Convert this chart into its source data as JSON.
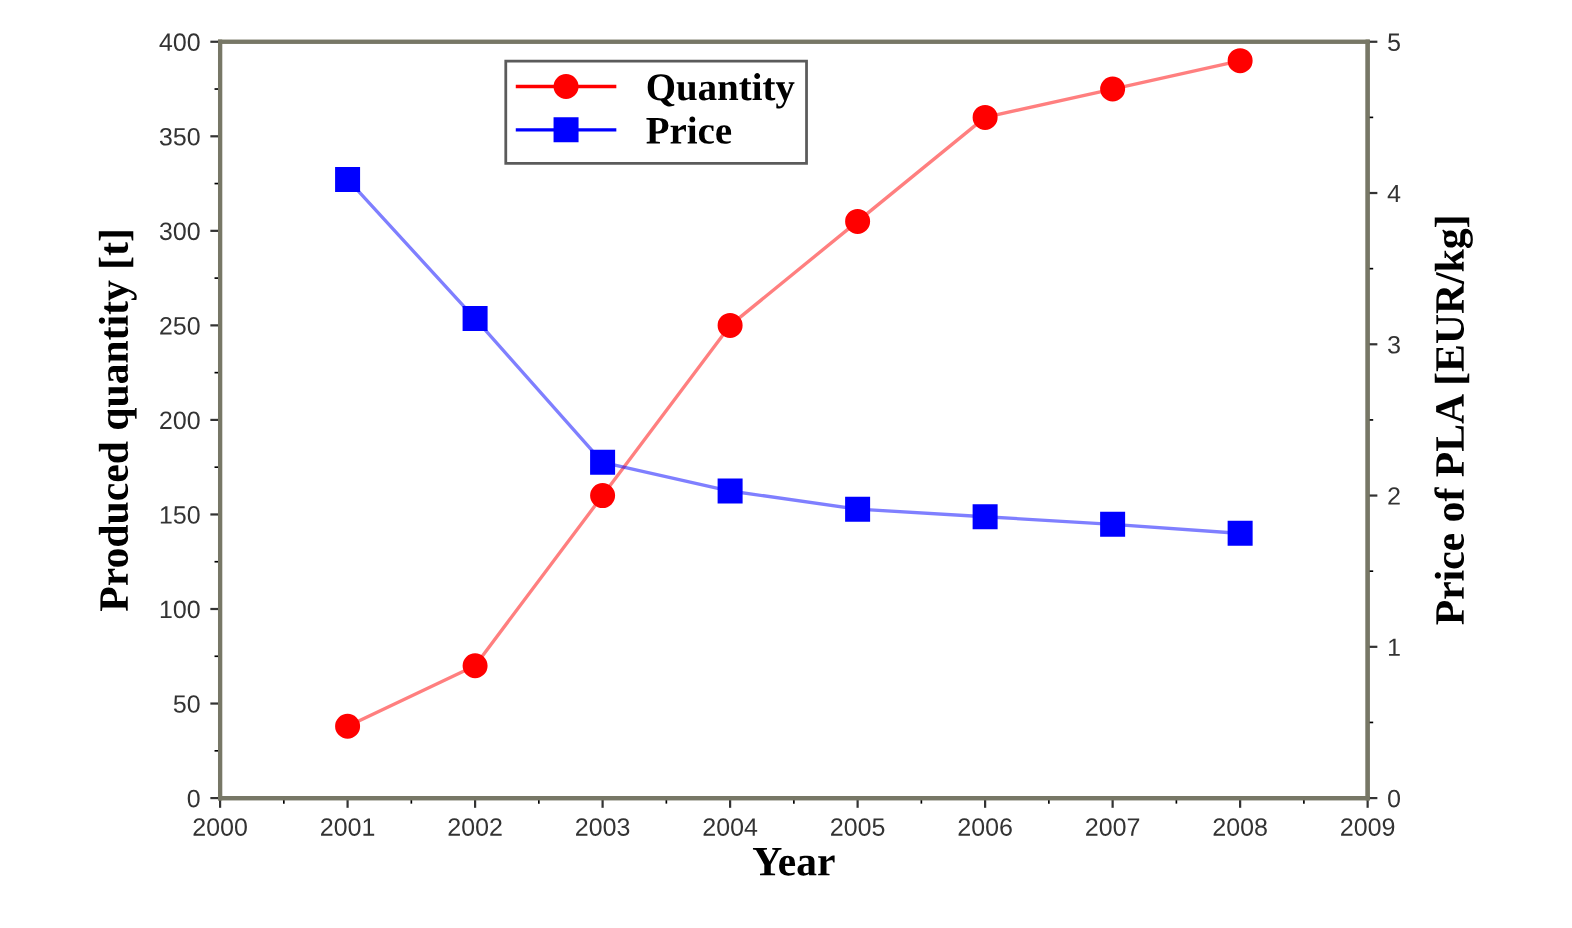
{
  "chart_data": {
    "type": "line",
    "xlabel": "Year",
    "ylabel": "Produced quantity [t]",
    "y2label": "Price of PLA [EUR/kg]",
    "x": [
      2001,
      2002,
      2003,
      2004,
      2005,
      2006,
      2007,
      2008
    ],
    "series": [
      {
        "name": "Quantity",
        "color": "#ff0000",
        "marker": "circle",
        "values": [
          38,
          70,
          160,
          250,
          305,
          360,
          375,
          390
        ]
      },
      {
        "name": "Price",
        "color": "#0000ff",
        "marker": "square",
        "axis": "y2",
        "values": [
          4.09,
          3.17,
          2.22,
          2.03,
          1.91,
          1.86,
          1.81,
          1.75
        ]
      }
    ],
    "xlim": [
      2000,
      2009
    ],
    "xticks": [
      2000,
      2001,
      2002,
      2003,
      2004,
      2005,
      2006,
      2007,
      2008,
      2009
    ],
    "ylim": [
      0,
      400
    ],
    "yticks": [
      0,
      50,
      100,
      150,
      200,
      250,
      300,
      350,
      400
    ],
    "y2lim": [
      0,
      5
    ],
    "y2ticks": [
      0,
      1,
      2,
      3,
      4,
      5
    ],
    "grid": false,
    "legend": "top",
    "line_style": "solid"
  }
}
